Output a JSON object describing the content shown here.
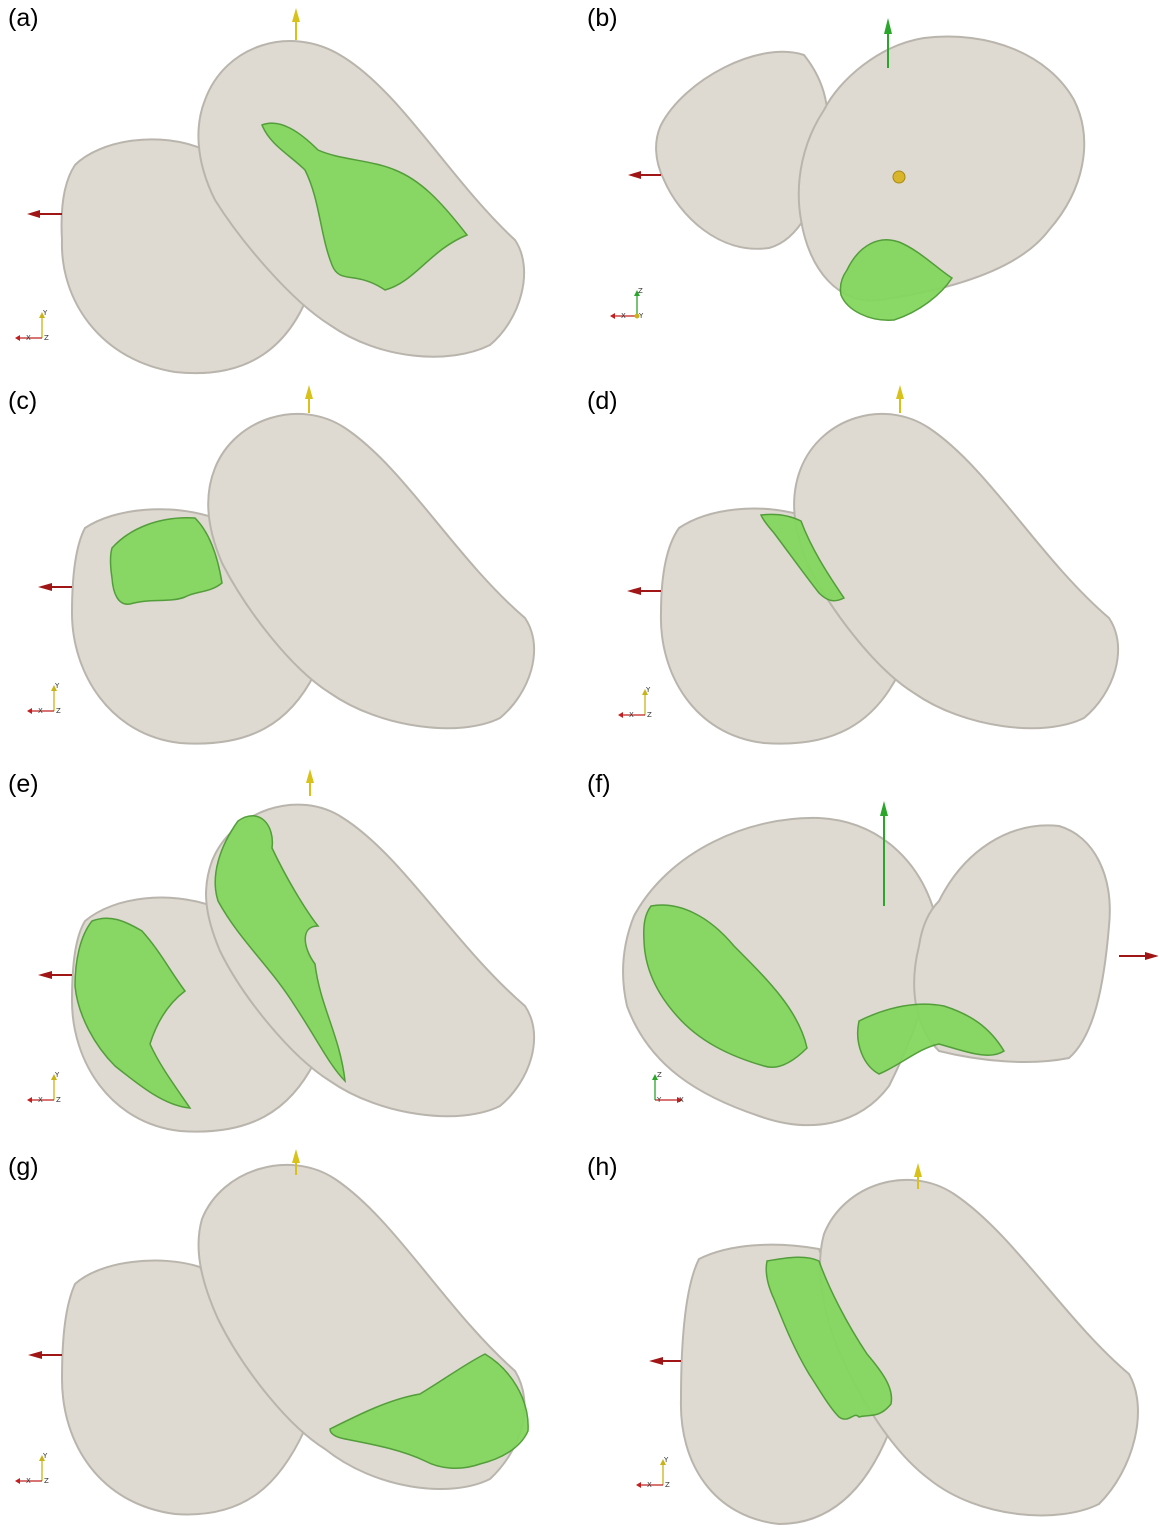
{
  "figure": {
    "panels": [
      {
        "id": "a",
        "label": "(a)",
        "triad": {
          "horizontal": "X",
          "vertical": "Y",
          "depth": "Z"
        }
      },
      {
        "id": "b",
        "label": "(b)",
        "triad": {
          "horizontal": "X",
          "vertical": "Z",
          "depth": "Y"
        }
      },
      {
        "id": "c",
        "label": "(c)",
        "triad": {
          "horizontal": "X",
          "vertical": "Y",
          "depth": "Z"
        }
      },
      {
        "id": "d",
        "label": "(d)",
        "triad": {
          "horizontal": "X",
          "vertical": "Y",
          "depth": "Z"
        }
      },
      {
        "id": "e",
        "label": "(e)",
        "triad": {
          "horizontal": "X",
          "vertical": "Y",
          "depth": "Z"
        }
      },
      {
        "id": "f",
        "label": "(f)",
        "triad": {
          "horizontal": "X",
          "vertical": "Z",
          "depth": "Y"
        }
      },
      {
        "id": "g",
        "label": "(g)",
        "triad": {
          "horizontal": "X",
          "vertical": "Y",
          "depth": "Z"
        }
      },
      {
        "id": "h",
        "label": "(h)",
        "triad": {
          "horizontal": "X",
          "vertical": "Y",
          "depth": "Z"
        }
      }
    ],
    "colors": {
      "nucleus": "#dedad2",
      "nucleus_shadow": "#b9b5ad",
      "region": "#84d65e",
      "region_shadow": "#4c9a32",
      "x_axis_arrow": "#a01616",
      "y_axis_arrow": "#d8c21a",
      "z_axis_arrow": "#2aa62a"
    }
  }
}
